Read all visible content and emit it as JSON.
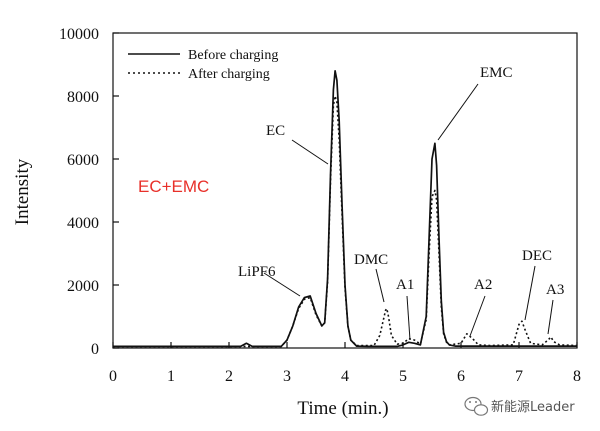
{
  "chart_data": {
    "type": "line",
    "title": "",
    "xlabel": "Time (min.)",
    "ylabel": "Intensity",
    "xlim": [
      0,
      8
    ],
    "ylim": [
      0,
      10000
    ],
    "xticks": [
      "0",
      "1",
      "2",
      "3",
      "4",
      "5",
      "6",
      "7",
      "8"
    ],
    "yticks": [
      "0",
      "2000",
      "4000",
      "6000",
      "8000",
      "10000"
    ],
    "grid": false,
    "legend_position": "top-left",
    "series": [
      {
        "name": "Before charging",
        "line_style": "solid",
        "x": [
          0,
          2.2,
          2.3,
          2.4,
          2.9,
          3.0,
          3.1,
          3.2,
          3.3,
          3.4,
          3.5,
          3.6,
          3.65,
          3.7,
          3.75,
          3.8,
          3.83,
          3.86,
          3.9,
          3.95,
          4.0,
          4.05,
          4.1,
          4.2,
          4.4,
          4.9,
          5.0,
          5.1,
          5.2,
          5.3,
          5.4,
          5.45,
          5.5,
          5.55,
          5.58,
          5.62,
          5.66,
          5.7,
          5.75,
          5.8,
          5.9,
          6.0,
          7.0,
          8.0
        ],
        "y": [
          50,
          50,
          150,
          50,
          50,
          250,
          700,
          1300,
          1600,
          1650,
          1100,
          700,
          800,
          2200,
          5500,
          8200,
          8800,
          8500,
          7200,
          4500,
          2000,
          700,
          250,
          60,
          50,
          50,
          100,
          180,
          150,
          100,
          1000,
          3500,
          6000,
          6500,
          5800,
          3500,
          1500,
          500,
          200,
          100,
          60,
          60,
          60,
          60
        ]
      },
      {
        "name": "After charging",
        "line_style": "dotted",
        "x": [
          0,
          2.9,
          3.0,
          3.1,
          3.2,
          3.3,
          3.4,
          3.5,
          3.6,
          3.65,
          3.7,
          3.75,
          3.8,
          3.83,
          3.86,
          3.9,
          3.95,
          4.0,
          4.05,
          4.1,
          4.2,
          4.5,
          4.6,
          4.7,
          4.72,
          4.75,
          4.8,
          4.9,
          5.0,
          5.1,
          5.2,
          5.3,
          5.4,
          5.45,
          5.5,
          5.55,
          5.58,
          5.62,
          5.66,
          5.7,
          5.75,
          5.8,
          6.0,
          6.1,
          6.2,
          6.3,
          6.5,
          6.9,
          7.0,
          7.05,
          7.1,
          7.2,
          7.4,
          7.5,
          7.55,
          7.6,
          7.7,
          8.0
        ],
        "y": [
          50,
          50,
          250,
          700,
          1250,
          1550,
          1600,
          1050,
          700,
          800,
          2100,
          5300,
          7700,
          8000,
          7800,
          6600,
          4200,
          1900,
          700,
          250,
          80,
          80,
          400,
          1200,
          1250,
          1000,
          400,
          120,
          150,
          300,
          250,
          120,
          900,
          3000,
          4800,
          5000,
          4700,
          3000,
          1300,
          450,
          180,
          100,
          150,
          450,
          300,
          100,
          80,
          100,
          750,
          850,
          600,
          150,
          100,
          250,
          350,
          200,
          100,
          80
        ]
      }
    ],
    "peak_labels": [
      "LiPF6",
      "EC",
      "DMC",
      "A1",
      "EMC",
      "A2",
      "DEC",
      "A3"
    ],
    "annotation": {
      "text": "EC+EMC",
      "color": "#e8302a"
    }
  },
  "watermark": {
    "text": "新能源Leader",
    "icon": "wechat-icon"
  }
}
